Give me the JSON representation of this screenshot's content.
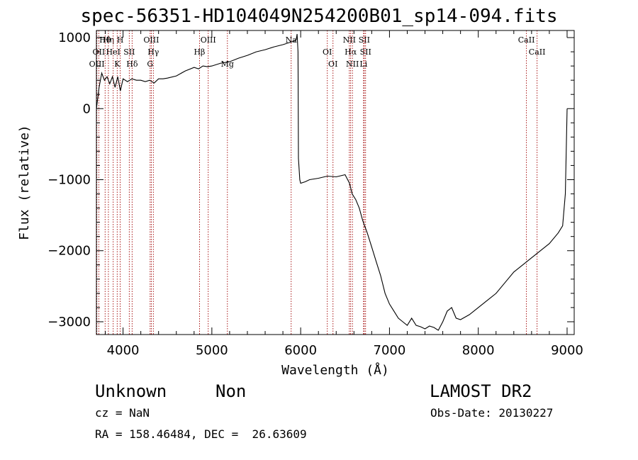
{
  "chart_data": {
    "type": "line",
    "title": "spec-56351-HD104049N254200B01_sp14-094.fits",
    "xlabel": "Wavelength (Å)",
    "ylabel": "Flux (relative)",
    "xlim": [
      3700,
      9080
    ],
    "ylim": [
      -3180,
      1100
    ],
    "xticks": [
      4000,
      5000,
      6000,
      7000,
      8000,
      9000
    ],
    "yticks": [
      -3000,
      -2000,
      -1000,
      0,
      1000
    ],
    "series": [
      {
        "x": [
          3700,
          3730,
          3760,
          3790,
          3820,
          3850,
          3880,
          3910,
          3940,
          3970,
          4000,
          4050,
          4100,
          4150,
          4200,
          4250,
          4300,
          4350,
          4400,
          4450,
          4500,
          4600,
          4700,
          4800,
          4850,
          4900,
          4950,
          5000,
          5100,
          5200,
          5300,
          5400,
          5500,
          5600,
          5700,
          5800,
          5850,
          5900,
          5930,
          5950,
          5960,
          5970,
          5975,
          5990,
          6000,
          6050,
          6100,
          6200,
          6300,
          6400,
          6500,
          6550,
          6580,
          6620,
          6660,
          6700,
          6750,
          6800,
          6850,
          6900,
          6950,
          7000,
          7050,
          7100,
          7150,
          7200,
          7250,
          7300,
          7350,
          7400,
          7450,
          7500,
          7550,
          7600,
          7650,
          7700,
          7750,
          7800,
          7900,
          8000,
          8100,
          8200,
          8300,
          8400,
          8500,
          8600,
          8700,
          8800,
          8900,
          8950,
          8980,
          9000
        ],
        "values": [
          0,
          300,
          500,
          400,
          450,
          350,
          450,
          300,
          450,
          250,
          420,
          380,
          420,
          400,
          400,
          380,
          400,
          360,
          420,
          420,
          430,
          460,
          530,
          580,
          560,
          600,
          590,
          600,
          640,
          660,
          710,
          750,
          800,
          830,
          870,
          900,
          920,
          940,
          950,
          970,
          1050,
          800,
          -700,
          -1000,
          -1050,
          -1030,
          -1000,
          -980,
          -950,
          -960,
          -930,
          -1050,
          -1200,
          -1280,
          -1400,
          -1580,
          -1750,
          -1950,
          -2150,
          -2350,
          -2600,
          -2750,
          -2850,
          -2950,
          -3000,
          -3050,
          -2950,
          -3050,
          -3070,
          -3100,
          -3060,
          -3080,
          -3120,
          -3000,
          -2850,
          -2800,
          -2950,
          -2970,
          -2900,
          -2800,
          -2700,
          -2600,
          -2450,
          -2300,
          -2200,
          -2100,
          -2000,
          -1900,
          -1750,
          -1650,
          -1200,
          0
        ]
      }
    ],
    "lines": [
      {
        "label": "Hθ",
        "x": 3798
      },
      {
        "label": "OII",
        "x": 3727
      },
      {
        "label": "OIII",
        "x": 3705
      },
      {
        "label": "Hη",
        "x": 3835
      },
      {
        "label": "HeI",
        "x": 3889
      },
      {
        "label": "K",
        "x": 3934
      },
      {
        "label": "H",
        "x": 3968
      },
      {
        "label": "SII",
        "x": 4070
      },
      {
        "label": "Hδ",
        "x": 4102
      },
      {
        "label": "OIII",
        "x": 4318
      },
      {
        "label": "Hγ",
        "x": 4341
      },
      {
        "label": "G",
        "x": 4305
      },
      {
        "label": "OIII",
        "x": 4959
      },
      {
        "label": "Hβ",
        "x": 4861
      },
      {
        "label": "Mg",
        "x": 5175
      },
      {
        "label": "Na",
        "x": 5893
      },
      {
        "label": "OI",
        "x": 6300
      },
      {
        "label": "OI",
        "x": 6364
      },
      {
        "label": "NII",
        "x": 6548
      },
      {
        "label": "Hα",
        "x": 6563
      },
      {
        "label": "NII",
        "x": 6583
      },
      {
        "label": "SII",
        "x": 6716
      },
      {
        "label": "SII",
        "x": 6731
      },
      {
        "label": "Li",
        "x": 6708
      },
      {
        "label": "CaII",
        "x": 8542
      },
      {
        "label": "CaII",
        "x": 8662
      }
    ]
  },
  "info": {
    "object_type": "Unknown",
    "object_class": "Non",
    "survey": "LAMOST DR2",
    "cz": "cz = NaN",
    "obs_date": "Obs-Date: 20130227",
    "coords": "RA = 158.46484, DEC =  26.63609"
  }
}
